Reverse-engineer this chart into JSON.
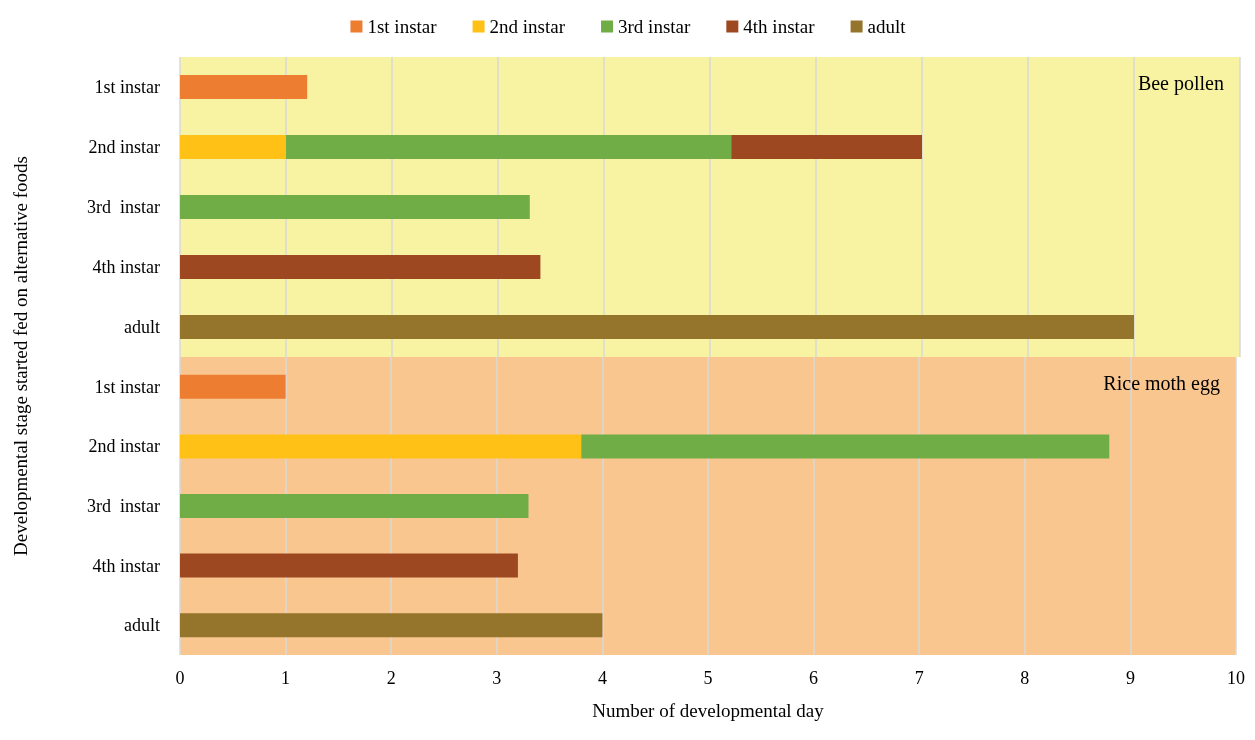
{
  "chart_data": [
    {
      "type": "bar",
      "orientation": "horizontal",
      "stacked": true,
      "ylabel": "Developmental stage started fed on alternative foods",
      "categories": [
        "1st instar",
        "2nd instar",
        "3rd  instar",
        "4th instar",
        "adult"
      ],
      "series": [
        {
          "name": "1st instar",
          "color": "#ed7d31",
          "values": [
            1.2,
            null,
            null,
            null,
            null
          ]
        },
        {
          "name": "2nd instar",
          "color": "#ffc115",
          "values": [
            null,
            1.0,
            null,
            null,
            null
          ]
        },
        {
          "name": "3rd instar",
          "color": "#70ad47",
          "values": [
            null,
            4.2,
            3.3,
            null,
            null
          ]
        },
        {
          "name": "4th instar",
          "color": "#9e4821",
          "values": [
            null,
            1.8,
            null,
            3.4,
            null
          ]
        },
        {
          "name": "adult",
          "color": "#95742b",
          "values": [
            null,
            null,
            null,
            null,
            9.0
          ]
        }
      ],
      "xlim": [
        0,
        10
      ],
      "xticks": [
        0,
        1,
        2,
        3,
        4,
        5,
        6,
        7,
        8,
        9,
        10
      ],
      "grid": "x",
      "legend": "top",
      "tick_labels": "y",
      "bands": [
        {
          "axis": "x",
          "from": 0,
          "to": 10,
          "label": "Bee pollen",
          "color": "#f7f3a3"
        }
      ]
    },
    {
      "type": "bar",
      "orientation": "horizontal",
      "stacked": true,
      "xlabel": "Number of developmental day",
      "categories": [
        "1st instar",
        "2nd instar",
        "3rd  instar",
        "4th instar",
        "adult"
      ],
      "series": [
        {
          "color": "#ed7d31",
          "values": [
            1.0,
            null,
            null,
            null,
            null
          ]
        },
        {
          "color": "#ffc115",
          "values": [
            null,
            3.8,
            null,
            null,
            null
          ]
        },
        {
          "color": "#70ad47",
          "values": [
            null,
            5.0,
            3.3,
            null,
            null
          ]
        },
        {
          "color": "#9e4821",
          "values": [
            null,
            null,
            null,
            3.2,
            null
          ]
        },
        {
          "color": "#95742b",
          "values": [
            null,
            null,
            null,
            null,
            4.0
          ]
        }
      ],
      "xlim": [
        0,
        10
      ],
      "xticks": [
        0,
        1,
        2,
        3,
        4,
        5,
        6,
        7,
        8,
        9,
        10
      ],
      "grid": "x",
      "bands": [
        {
          "axis": "x",
          "from": 0,
          "to": 10,
          "label": "Rice moth egg",
          "color": "#fac690"
        }
      ]
    }
  ]
}
